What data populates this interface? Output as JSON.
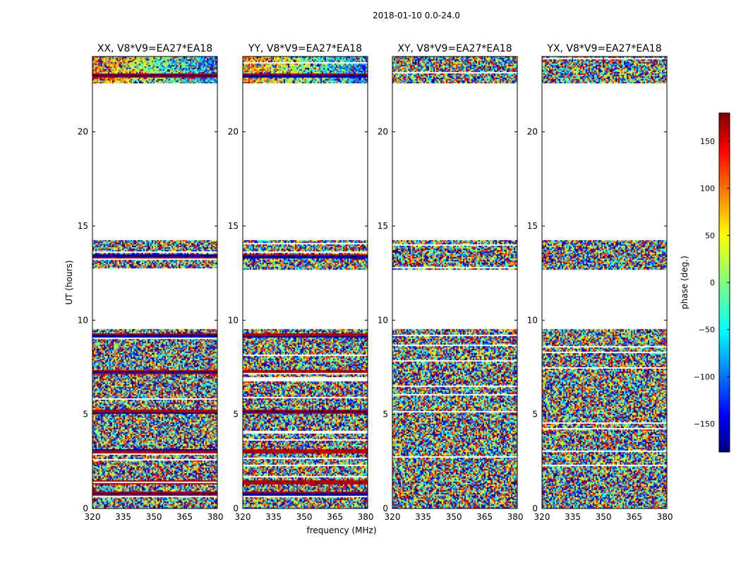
{
  "chart_data": {
    "type": "heatmap",
    "title": "2018-01-10 0.0-24.0",
    "xlabel": "frequency (MHz)",
    "ylabel": "UT (hours)",
    "xlim": [
      320,
      381
    ],
    "ylim": [
      0,
      24
    ],
    "x_ticks": [
      320,
      335,
      350,
      365,
      380
    ],
    "y_ticks": [
      0,
      5,
      10,
      15,
      20
    ],
    "panels": [
      {
        "title": "XX, V8*V9=EA27*EA18",
        "pol": "XX"
      },
      {
        "title": "YY, V8*V9=EA27*EA18",
        "pol": "YY"
      },
      {
        "title": "XY, V8*V9=EA27*EA18",
        "pol": "XY"
      },
      {
        "title": "YX, V8*V9=EA27*EA18",
        "pol": "YX"
      }
    ],
    "data_blocks_ut_hours": [
      [
        0.0,
        9.6
      ],
      [
        12.7,
        14.3
      ],
      [
        22.6,
        24.0
      ]
    ],
    "flagged_ut_hours": [
      0.85,
      1.4,
      3.1,
      5.2,
      7.3,
      9.2,
      13.4,
      23.0
    ],
    "colorbar": {
      "label": "phase (deg.)",
      "min": -180,
      "max": 180,
      "ticks": [
        150,
        100,
        50,
        0,
        -50,
        -100,
        -150
      ],
      "tick_labels": [
        "150",
        "100",
        "50",
        "0",
        "−50",
        "−100",
        "−150"
      ],
      "colormap": "jet"
    }
  }
}
